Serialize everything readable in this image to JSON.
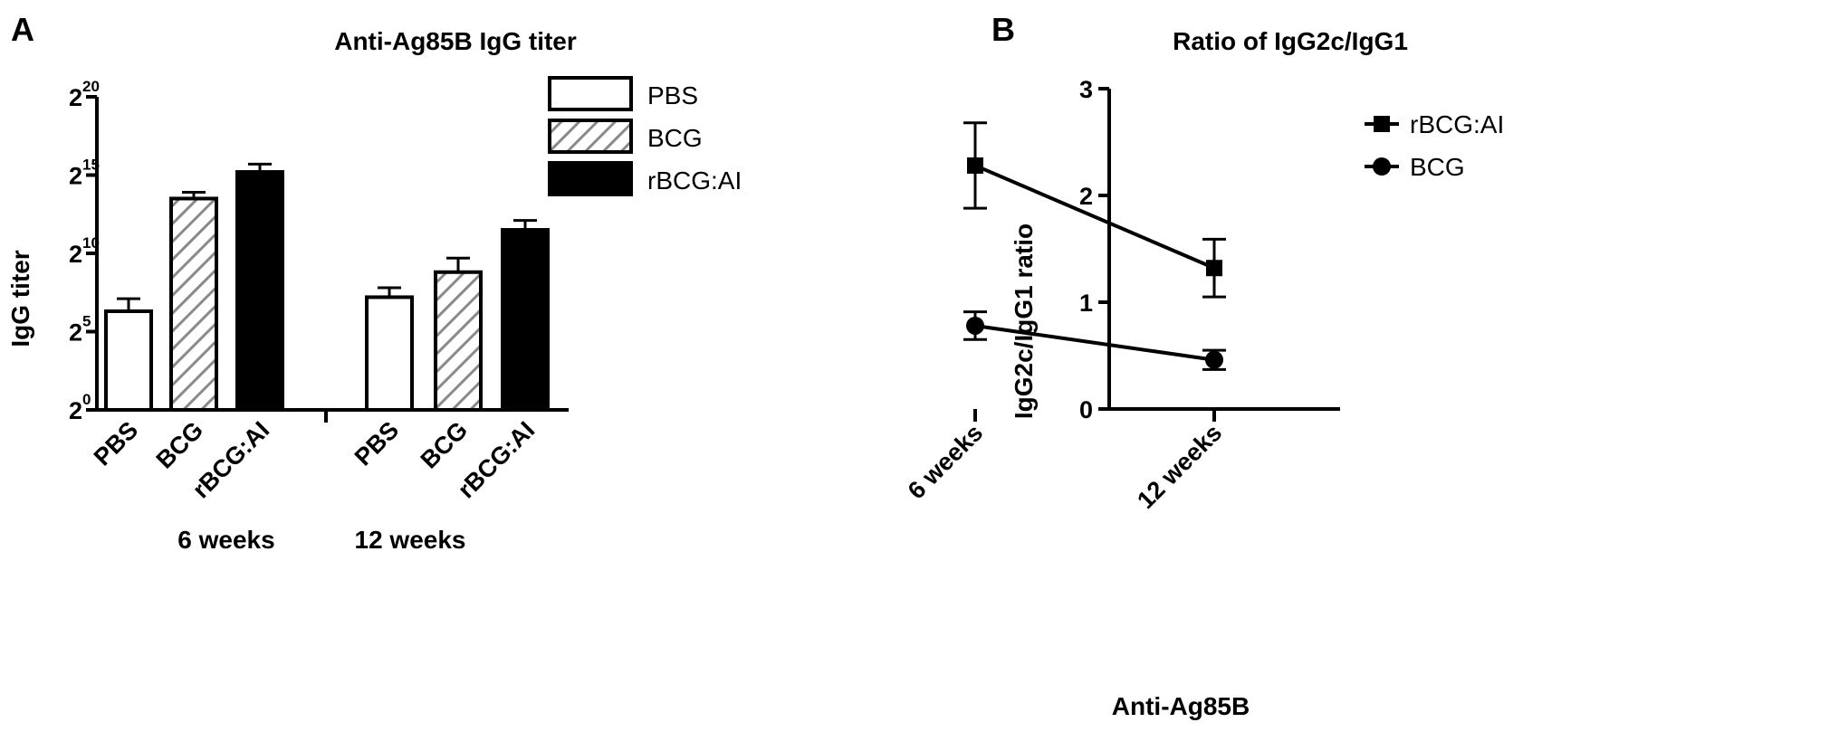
{
  "chart_data": [
    {
      "panel": "A",
      "type": "bar",
      "title": "Anti-Ag85B IgG titer",
      "ylabel": "IgG titer",
      "xlabel": "",
      "yscale": "log2",
      "ylim_exponent": [
        0,
        20
      ],
      "yticks": [
        {
          "base": "2",
          "exp": "0"
        },
        {
          "base": "2",
          "exp": "5"
        },
        {
          "base": "2",
          "exp": "10"
        },
        {
          "base": "2",
          "exp": "15"
        },
        {
          "base": "2",
          "exp": "20"
        }
      ],
      "groups": [
        "6 weeks",
        "12 weeks"
      ],
      "categories": [
        "PBS",
        "BCG",
        "rBCG:AI"
      ],
      "series": [
        {
          "name": "PBS",
          "fill": "white",
          "values_log2": [
            6.3,
            7.2
          ],
          "error_log2": [
            0.8,
            0.6
          ]
        },
        {
          "name": "BCG",
          "fill": "hatched",
          "values_log2": [
            13.5,
            8.8
          ],
          "error_log2": [
            0.4,
            0.9
          ]
        },
        {
          "name": "rBCG:AI",
          "fill": "black",
          "values_log2": [
            15.2,
            11.5
          ],
          "error_log2": [
            0.5,
            0.6
          ]
        }
      ],
      "legend": [
        "PBS",
        "BCG",
        "rBCG:AI"
      ],
      "legend_position": "top-right",
      "grid": false
    },
    {
      "panel": "B",
      "type": "line",
      "title": "Ratio of IgG2c/IgG1",
      "ylabel": "IgG2c/IgG1 ratio",
      "xlabel": "Anti-Ag85B",
      "categories": [
        "6 weeks",
        "12 weeks"
      ],
      "ylim": [
        0,
        3
      ],
      "yticks": [
        "0",
        "1",
        "2",
        "3"
      ],
      "series": [
        {
          "name": "rBCG:AI",
          "marker": "square",
          "values": [
            2.28,
            1.32
          ],
          "error": [
            0.4,
            0.27
          ]
        },
        {
          "name": "BCG",
          "marker": "circle",
          "values": [
            0.78,
            0.46
          ],
          "error": [
            0.13,
            0.09
          ]
        }
      ],
      "legend_position": "top-right",
      "grid": false
    }
  ]
}
